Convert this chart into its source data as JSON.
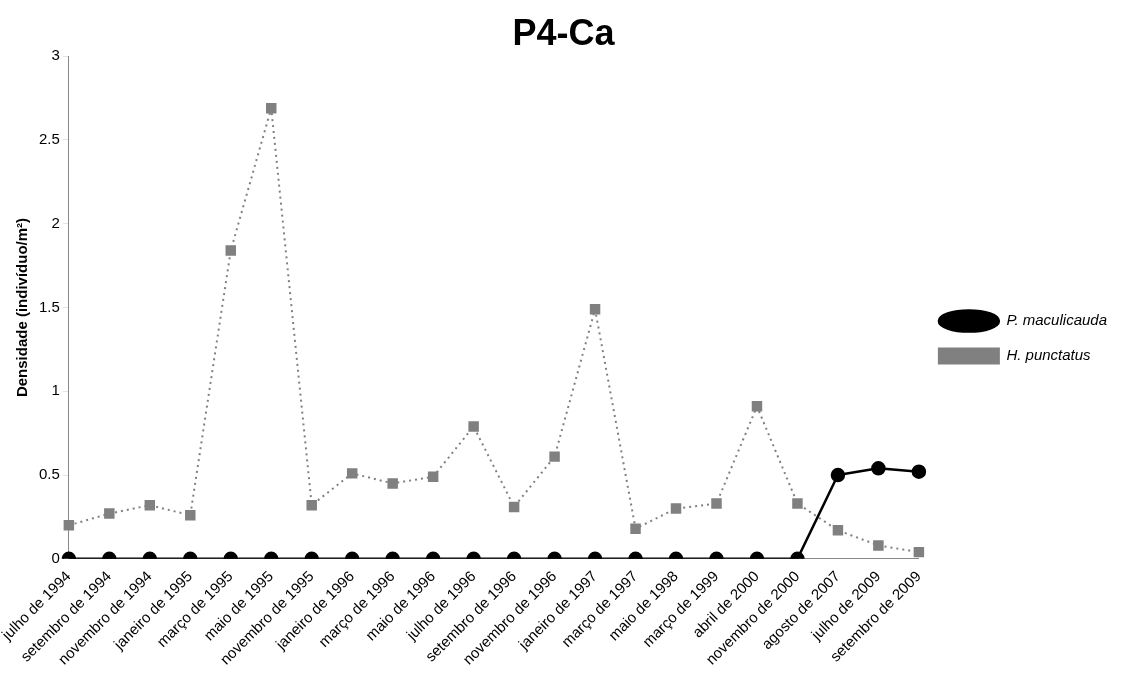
{
  "chart_data": {
    "type": "line",
    "title": "P4-Ca",
    "ylabel": "Densidade (indivíduo/m²)",
    "categories": [
      "julho de 1994",
      "setembro de 1994",
      "novembro de 1994",
      "janeiro de 1995",
      "março de 1995",
      "maio de 1995",
      "novembro de 1995",
      "janeiro de 1996",
      "março de 1996",
      "maio de 1996",
      "julho de 1996",
      "setembro de 1996",
      "novembro de 1996",
      "janeiro de 1997",
      "março de 1997",
      "maio de 1998",
      "março de 1999",
      "abril de 2000",
      "novembro de 2000",
      "agosto de 2007",
      "julho de 2009",
      "setembro de 2009"
    ],
    "series": [
      {
        "name": "P. maculicauda",
        "color": "#000000",
        "marker": "circle",
        "line_style": "solid",
        "values": [
          0,
          0,
          0,
          0,
          0,
          0,
          0,
          0,
          0,
          0,
          0,
          0,
          0,
          0,
          0,
          0,
          0,
          0,
          0,
          0.5,
          0.54,
          0.52
        ]
      },
      {
        "name": "H. punctatus",
        "color": "#808080",
        "marker": "square",
        "line_style": "dotted",
        "values": [
          0.2,
          0.27,
          0.32,
          0.26,
          1.84,
          2.69,
          0.32,
          0.51,
          0.45,
          0.49,
          0.79,
          0.31,
          0.61,
          1.49,
          0.18,
          0.3,
          0.33,
          0.91,
          0.33,
          0.17,
          0.08,
          0.04
        ]
      }
    ],
    "ylim": [
      0,
      3
    ],
    "yticks": [
      0,
      0.5,
      1,
      1.5,
      2,
      2.5,
      3
    ],
    "grid": false,
    "legend": "right"
  }
}
